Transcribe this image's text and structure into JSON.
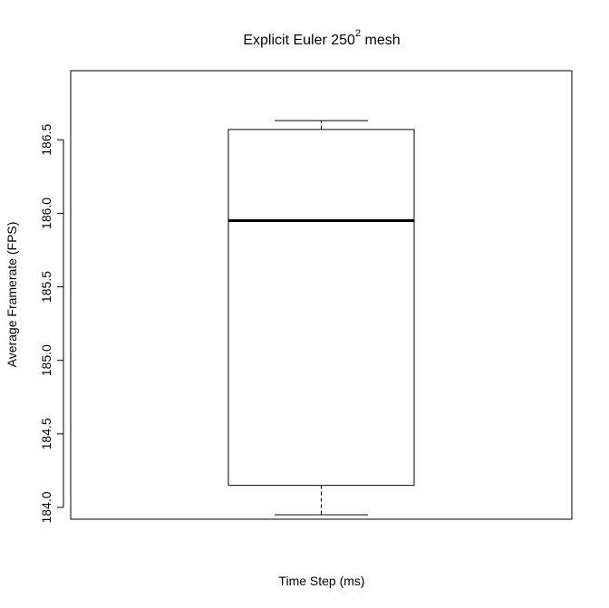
{
  "chart_data": {
    "type": "boxplot",
    "title": {
      "main": "Explicit Euler  250",
      "superscript": "2",
      "suffix": "  mesh"
    },
    "xlabel": "Time Step (ms)",
    "ylabel": "Average Framerate (FPS)",
    "ylim": [
      183.92,
      186.97
    ],
    "yticks": [
      184.0,
      184.5,
      185.0,
      185.5,
      186.0,
      186.5
    ],
    "ytick_labels": [
      "184.0",
      "184.5",
      "185.0",
      "185.5",
      "186.0",
      "186.5"
    ],
    "boxes": [
      {
        "min": 183.95,
        "q1": 184.15,
        "median": 185.95,
        "q3": 186.57,
        "max": 186.63
      }
    ],
    "grid": false,
    "legend": "none"
  }
}
